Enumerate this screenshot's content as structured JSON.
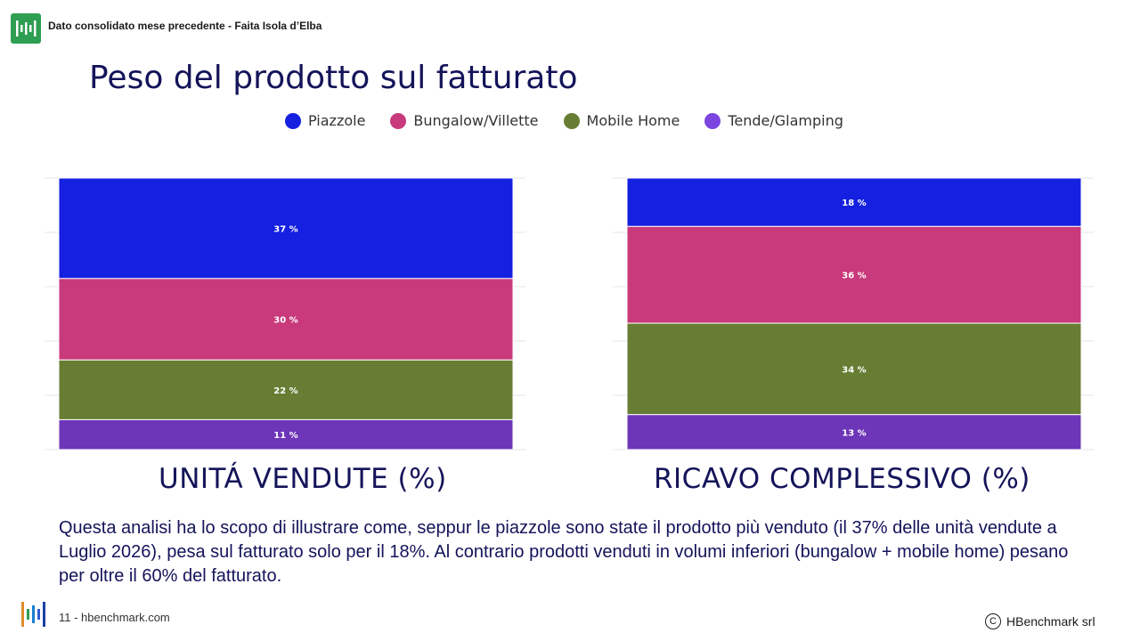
{
  "header": {
    "text": "Dato consolidato mese precedente - Faita Isola d’Elba"
  },
  "title": "Peso del prodotto sul fatturato",
  "colors": {
    "piazzole": "#1520e0",
    "bungalow": "#c83a7b",
    "mobile_home": "#677d33",
    "tende": "#6d35b8",
    "title": "#14145a"
  },
  "chart_data": [
    {
      "type": "bar",
      "stacked": true,
      "title": "UNITÁ VENDUTE (%)",
      "categories": [
        "UNITÁ VENDUTE (%)"
      ],
      "series": [
        {
          "name": "Piazzole",
          "values": [
            37
          ],
          "label": "37 %"
        },
        {
          "name": "Bungalow/Villette",
          "values": [
            30
          ],
          "label": "30 %"
        },
        {
          "name": "Mobile Home",
          "values": [
            22
          ],
          "label": "22 %"
        },
        {
          "name": "Tende/Glamping",
          "values": [
            11
          ],
          "label": "11 %"
        }
      ],
      "ylim": [
        0,
        100
      ],
      "grid": true,
      "legend": "top"
    },
    {
      "type": "bar",
      "stacked": true,
      "title": "RICAVO COMPLESSIVO (%)",
      "categories": [
        "RICAVO COMPLESSIVO (%)"
      ],
      "series": [
        {
          "name": "Piazzole",
          "values": [
            18
          ],
          "label": "18 %"
        },
        {
          "name": "Bungalow/Villette",
          "values": [
            36
          ],
          "label": "36 %"
        },
        {
          "name": "Mobile Home",
          "values": [
            34
          ],
          "label": "34 %"
        },
        {
          "name": "Tende/Glamping",
          "values": [
            13
          ],
          "label": "13 %"
        }
      ],
      "ylim": [
        0,
        100
      ],
      "grid": true,
      "legend": "top"
    }
  ],
  "legend": [
    "Piazzole",
    "Bungalow/Villette",
    "Mobile Home",
    "Tende/Glamping"
  ],
  "description": "Questa analisi ha lo scopo di illustrare come, seppur le piazzole sono state il prodotto più venduto (il 37% delle unità vendute a Luglio 2026), pesa sul fatturato solo per il 18%. Al contrario prodotti venduti in volumi inferiori (bungalow + mobile home) pesano per oltre il 60% del fatturato.",
  "footer": {
    "page": "11 - hbenchmark.com",
    "copyright": "HBenchmark srl",
    "copy_symbol": "C"
  }
}
